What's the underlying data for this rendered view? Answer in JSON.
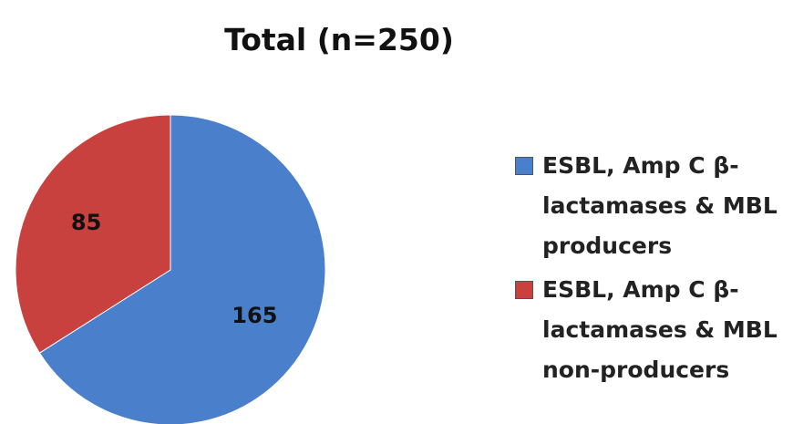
{
  "chart_data": {
    "type": "pie",
    "title": "Total (n=250)",
    "categories": [
      "ESBL, Amp C β-lactamases & MBL producers",
      "ESBL, Amp C β-lactamases & MBL non-producers"
    ],
    "values": [
      165,
      85
    ],
    "colors": [
      "#4a7fcb",
      "#c8413f"
    ],
    "legend": "right"
  }
}
